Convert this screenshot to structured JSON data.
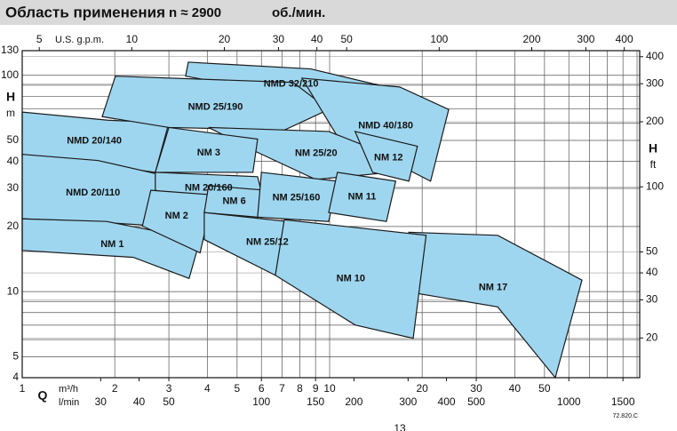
{
  "chart_data": {
    "type": "region",
    "title": "Область применения",
    "speed": "n ≈ 2900",
    "speed_unit": "об./мин.",
    "log_scale": true,
    "grid": true,
    "color": "#9fd6ef",
    "edge_color": "#1a1a1a",
    "x_label": "Q",
    "x_unit": "m³/h",
    "xlim": [
      1,
      102
    ],
    "xticks": [
      1,
      2,
      3,
      4,
      5,
      6,
      7,
      8,
      9,
      10,
      20,
      30,
      40,
      50
    ],
    "xminor": [
      60,
      70,
      80,
      90,
      100
    ],
    "x3_unit": "l/min",
    "x3lim": [
      16.67,
      1700
    ],
    "x3ticks": [
      30,
      40,
      50,
      100,
      150,
      200,
      300,
      400,
      500,
      1000,
      1500
    ],
    "x2_label": "U.S. g.p.m.",
    "x2lim": [
      4.4,
      449
    ],
    "x2ticks": [
      5,
      10,
      20,
      30,
      40,
      50,
      100,
      200,
      300,
      400
    ],
    "y_label": "H",
    "y_unit": "m",
    "ylim": [
      4,
      130
    ],
    "yticks": [
      4,
      5,
      10,
      20,
      30,
      40,
      50,
      100,
      130
    ],
    "yminor": [
      6,
      7,
      8,
      9,
      60,
      70,
      80,
      90
    ],
    "y2_label": "H",
    "y2_unit": "ft",
    "y2lim": [
      13.1,
      426.5
    ],
    "y2ticks": [
      20,
      30,
      40,
      50,
      100,
      200,
      300,
      400
    ],
    "regions": [
      {
        "name": "NMD 20/140",
        "q": [
          1,
          1.9,
          3.0,
          2.71,
          1.65,
          1
        ],
        "h": [
          67.6,
          62,
          60.3,
          35.6,
          39.2,
          43.1
        ]
      },
      {
        "name": "NMD 20/110",
        "q": [
          1,
          1.76,
          3.0,
          2.77,
          1.65,
          1
        ],
        "h": [
          43.1,
          40.4,
          34.0,
          20.1,
          21.1,
          21.7
        ]
      },
      {
        "name": "NM 1",
        "q": [
          1,
          1.88,
          3.79,
          3.49,
          2.3,
          1
        ],
        "h": [
          21.7,
          21.1,
          17.4,
          11.5,
          14.4,
          15.5
        ]
      },
      {
        "name": "NMD 32/210",
        "q": [
          3.47,
          8.69,
          15.3,
          14.8,
          7.61,
          3.4
        ],
        "h": [
          115,
          107,
          88.3,
          66.4,
          80.4,
          99.1
        ]
      },
      {
        "name": "NMD 25/190",
        "q": [
          2.01,
          7.61,
          9.93,
          7.12,
          3.0,
          1.82
        ],
        "h": [
          99.1,
          92.7,
          69.5,
          55.8,
          57.4,
          64.4
        ]
      },
      {
        "name": "NMD 40/180",
        "q": [
          8.13,
          16.9,
          24.4,
          21.3,
          16.4,
          10.6
        ],
        "h": [
          97,
          88.3,
          69.5,
          32.4,
          39.2,
          52.2
        ]
      },
      {
        "name": "NM 25/20",
        "q": [
          4.04,
          9.93,
          16.4,
          15.8,
          9.0,
          5.83
        ],
        "h": [
          57.4,
          55,
          41.5,
          35.6,
          33,
          44
        ]
      },
      {
        "name": "NM 12",
        "q": [
          12.1,
          19.3,
          18.1,
          13.8
        ],
        "h": [
          55,
          47,
          32.4,
          35.6
        ]
      },
      {
        "name": "NM 3",
        "q": [
          3.0,
          5.83,
          5.63,
          2.71
        ],
        "h": [
          57.4,
          50.7,
          35.6,
          35.6
        ]
      },
      {
        "name": "NM 20/160",
        "q": [
          2.71,
          5.83,
          6.23,
          2.71
        ],
        "h": [
          35.6,
          34,
          23.2,
          29.4
        ]
      },
      {
        "name": "NM 2",
        "q": [
          2.62,
          4.18,
          3.79,
          2.46
        ],
        "h": [
          29.4,
          28,
          15.1,
          20.1
        ]
      },
      {
        "name": "NM 6",
        "q": [
          4.04,
          6.23,
          5.83,
          3.91
        ],
        "h": [
          30.9,
          29.4,
          22.1,
          23.2
        ]
      },
      {
        "name": "NM 25/160",
        "q": [
          6.0,
          10.6,
          9.93,
          5.83
        ],
        "h": [
          35.6,
          32.4,
          21.1,
          22.1
        ]
      },
      {
        "name": "NM 11",
        "q": [
          10.6,
          16.4,
          15.3,
          9.93
        ],
        "h": [
          35.6,
          32.4,
          21.1,
          23.2
        ]
      },
      {
        "name": "NM 25/12",
        "q": [
          3.91,
          9.93,
          9.6,
          6.66,
          3.91
        ],
        "h": [
          23.2,
          20.1,
          14.4,
          11.9,
          17.4
        ]
      },
      {
        "name": "NM 17",
        "q": [
          18.1,
          35.2,
          66.2,
          54.2,
          35.2,
          19.3
        ],
        "h": [
          18.8,
          18.2,
          11.3,
          4.0,
          8.5,
          9.8
        ]
      },
      {
        "name": "NM 10",
        "q": [
          7.12,
          20.6,
          18.7,
          12.1,
          6.66
        ],
        "h": [
          21.5,
          18.2,
          6.08,
          7.01,
          11.9
        ]
      }
    ],
    "code": "72.820.C",
    "page": "13"
  }
}
